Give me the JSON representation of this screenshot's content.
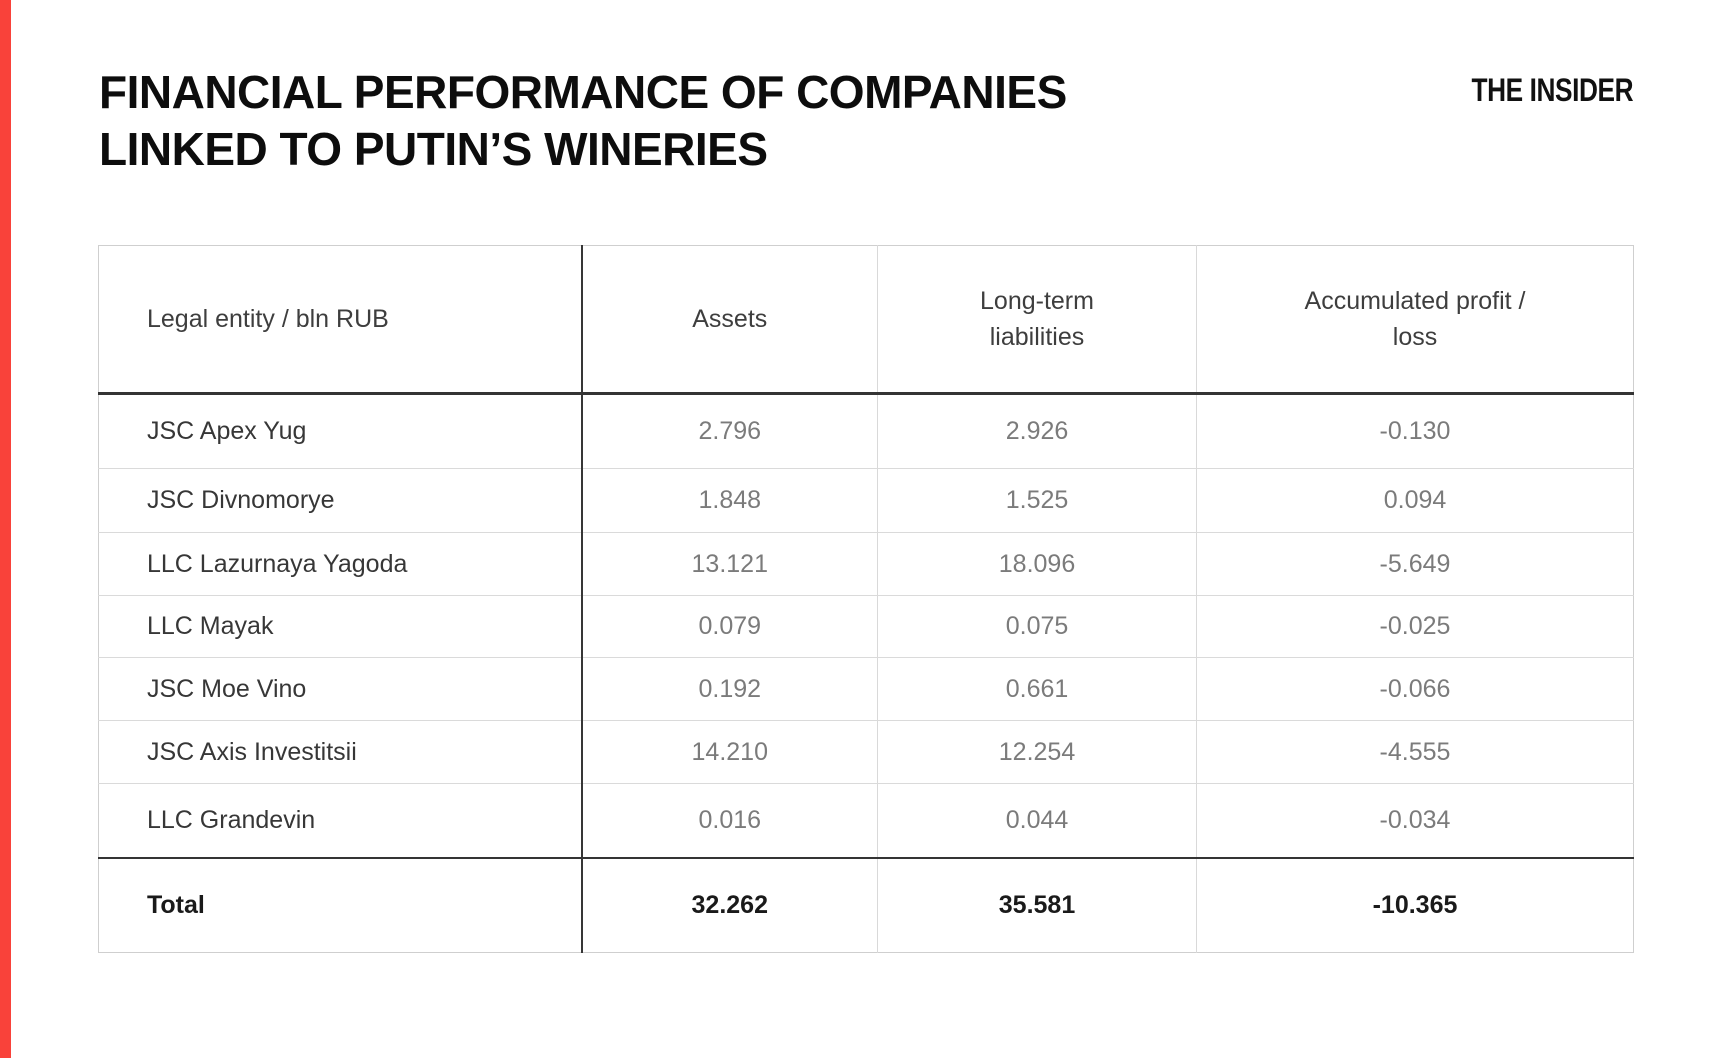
{
  "page": {
    "background_color": "#ffffff",
    "accent_color": "#f9423a"
  },
  "header": {
    "title_line1": "FINANCIAL PERFORMANCE OF COMPANIES",
    "title_line2": "LINKED TO PUTIN’S WINERIES",
    "brand": "THE INSIDER"
  },
  "table": {
    "columns": [
      "Legal entity / bln RUB",
      "Assets",
      "Long-term\nliabilities",
      "Accumulated profit /\nloss"
    ],
    "rows": [
      {
        "cells": [
          "JSC Apex Yug",
          "2.796",
          "2.926",
          "-0.130"
        ]
      },
      {
        "cells": [
          "JSC Divnomorye",
          "1.848",
          "1.525",
          "0.094"
        ]
      },
      {
        "cells": [
          "LLC Lazurnaya Yagoda",
          "13.121",
          "18.096",
          "-5.649"
        ]
      },
      {
        "cells": [
          "LLC Mayak",
          "0.079",
          "0.075",
          "-0.025"
        ]
      },
      {
        "cells": [
          "JSC Moe Vino",
          "0.192",
          "0.661",
          "-0.066"
        ]
      },
      {
        "cells": [
          "JSC Axis Investitsii",
          "14.210",
          "12.254",
          "-4.555"
        ]
      },
      {
        "cells": [
          "LLC Grandevin",
          "0.016",
          "0.044",
          "-0.034"
        ]
      }
    ],
    "total": {
      "cells": [
        "Total",
        "32.262",
        "35.581",
        "-10.365"
      ]
    }
  },
  "chart_data": {
    "type": "table",
    "title": "FINANCIAL PERFORMANCE OF COMPANIES LINKED TO PUTIN'S WINERIES",
    "units": "bln RUB",
    "columns": [
      "Legal entity / bln RUB",
      "Assets",
      "Long-term liabilities",
      "Accumulated profit / loss"
    ],
    "rows": [
      [
        "JSC Apex Yug",
        2.796,
        2.926,
        -0.13
      ],
      [
        "JSC Divnomorye",
        1.848,
        1.525,
        0.094
      ],
      [
        "LLC Lazurnaya Yagoda",
        13.121,
        18.096,
        -5.649
      ],
      [
        "LLC Mayak",
        0.079,
        0.075,
        -0.025
      ],
      [
        "JSC Moe Vino",
        0.192,
        0.661,
        -0.066
      ],
      [
        "JSC Axis Investitsii",
        14.21,
        12.254,
        -4.555
      ],
      [
        "LLC Grandevin",
        0.016,
        0.044,
        -0.034
      ]
    ],
    "total": [
      "Total",
      32.262,
      35.581,
      -10.365
    ]
  }
}
